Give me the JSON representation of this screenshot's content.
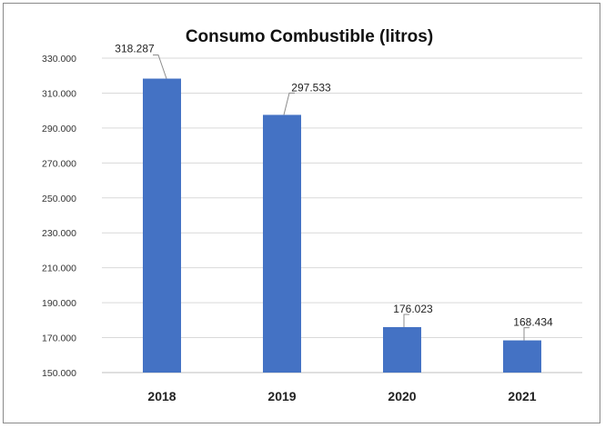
{
  "chart_data": {
    "type": "bar",
    "title": "Consumo Combustible (litros)",
    "categories": [
      "2018",
      "2019",
      "2020",
      "2021"
    ],
    "values": [
      318287,
      297533,
      176023,
      168434
    ],
    "data_labels": [
      "318.287",
      "297.533",
      "176.023",
      "168.434"
    ],
    "ylim": [
      150000,
      330000
    ],
    "yticks": [
      150000,
      170000,
      190000,
      210000,
      230000,
      250000,
      270000,
      290000,
      310000,
      330000
    ],
    "ytick_labels": [
      "150.000",
      "170.000",
      "190.000",
      "210.000",
      "230.000",
      "250.000",
      "270.000",
      "290.000",
      "310.000",
      "330.000"
    ],
    "grid": true,
    "bar_color": "#4472C4"
  }
}
